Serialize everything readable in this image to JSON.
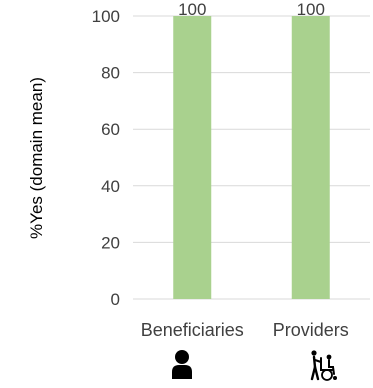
{
  "chart_data": {
    "type": "bar",
    "categories": [
      "Beneficiaries",
      "Providers"
    ],
    "values": [
      100,
      100
    ],
    "data_labels": [
      "100",
      "100"
    ],
    "title": "",
    "xlabel": "",
    "ylabel": "%Yes (domain mean)",
    "ylim": [
      0,
      100
    ],
    "yticks": [
      0,
      20,
      40,
      60,
      80,
      100
    ],
    "ytick_labels": [
      "0",
      "20",
      "40",
      "60",
      "80",
      "100"
    ],
    "grid": true,
    "legend": "none",
    "bar_color": "#a9d18e",
    "grid_color": "#d9d9d9",
    "category_icons": [
      "person-icon",
      "wheelchair-caregiver-icon"
    ]
  }
}
